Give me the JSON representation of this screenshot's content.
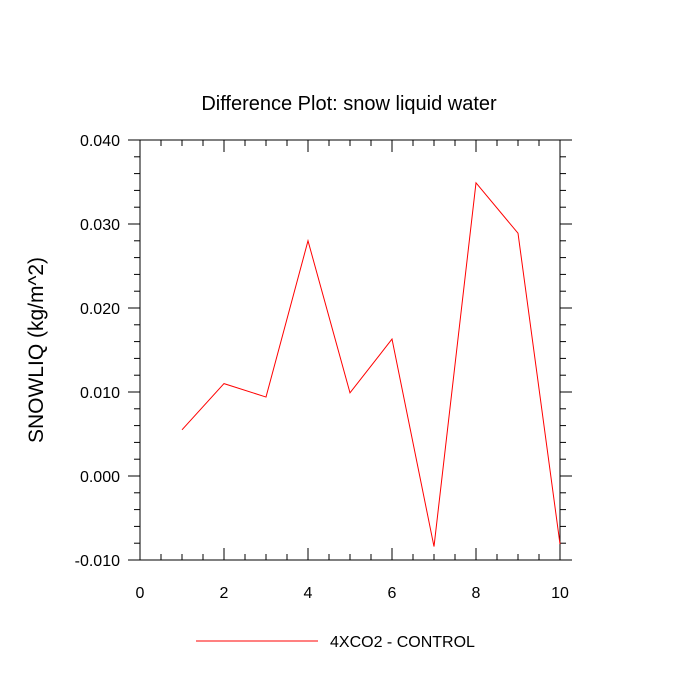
{
  "chart_data": {
    "type": "line",
    "title": "Difference Plot: snow liquid water",
    "xlabel": "",
    "ylabel": "SNOWLIQ  (kg/m^2)",
    "xlim": [
      0,
      10
    ],
    "ylim": [
      -0.01,
      0.04
    ],
    "x_ticks": [
      0,
      2,
      4,
      6,
      8,
      10
    ],
    "x_tick_labels": [
      "0",
      "2",
      "4",
      "6",
      "8",
      "10"
    ],
    "y_ticks": [
      -0.01,
      0.0,
      0.01,
      0.02,
      0.03,
      0.04
    ],
    "y_tick_labels": [
      "-0.010",
      "0.000",
      "0.010",
      "0.020",
      "0.030",
      "0.040"
    ],
    "grid": false,
    "legend_position": "bottom",
    "series": [
      {
        "name": "4XCO2 - CONTROL",
        "color": "#ff0000",
        "x": [
          1,
          2,
          3,
          4,
          5,
          6,
          7,
          8,
          9,
          10
        ],
        "y": [
          0.0055,
          0.011,
          0.0094,
          0.028,
          0.0099,
          0.0163,
          -0.0084,
          0.0349,
          0.0289,
          -0.0081
        ]
      }
    ]
  }
}
